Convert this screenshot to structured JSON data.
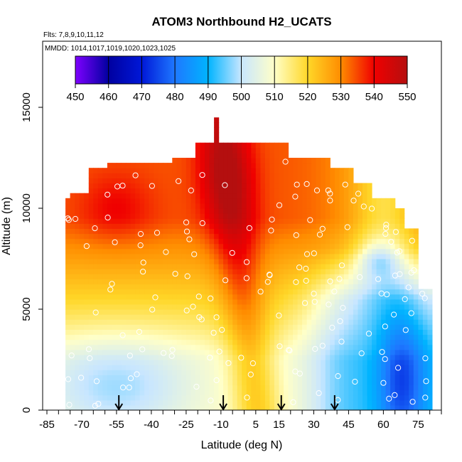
{
  "chart_data": {
    "type": "heatmap",
    "title": "ATOM3 Northbound H2_UCATS",
    "subtitle_flights": "Flts: 7,8,9,10,11,12",
    "subtitle_dates": "MMDD: 1014,1017,1019,1020,1023,1025",
    "xlabel": "Latitude (deg N)",
    "ylabel": "Altitude (m)",
    "xlim": [
      -85,
      85
    ],
    "ylim": [
      0,
      17500
    ],
    "xticks": [
      -85,
      -70,
      -55,
      -40,
      -25,
      -10,
      5,
      15,
      30,
      45,
      60,
      75
    ],
    "xtick_labels": [
      "-85",
      "-70",
      "-55",
      "-40",
      "-25",
      "-10",
      "5",
      "15",
      "30",
      "45",
      "60",
      "75"
    ],
    "yticks": [
      0,
      5000,
      10000,
      15000
    ],
    "ytick_labels": [
      "0",
      "5000",
      "10000",
      "15000"
    ],
    "colorbar": {
      "min": 450,
      "max": 550,
      "ticks": [
        450,
        460,
        470,
        480,
        490,
        500,
        510,
        520,
        530,
        540,
        550
      ],
      "tick_labels": [
        "450",
        "460",
        "470",
        "480",
        "490",
        "500",
        "510",
        "520",
        "530",
        "540",
        "550"
      ],
      "colors": [
        "#7f00ff",
        "#0000a0",
        "#0018d8",
        "#1e78ff",
        "#00b4ff",
        "#c8e6ff",
        "#ffffc8",
        "#ffd728",
        "#ff8c00",
        "#f00000",
        "#b40f0f"
      ]
    },
    "arrows_latitude": [
      -54,
      -9,
      16,
      39
    ],
    "grid": false
  }
}
